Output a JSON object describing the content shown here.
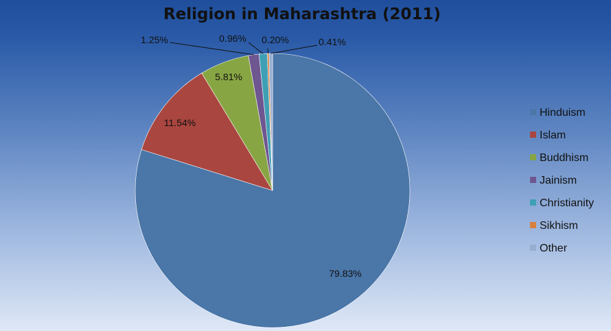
{
  "chart_data": {
    "type": "pie",
    "title": "Religion in Maharashtra (2011)",
    "legend_position": "right",
    "slices": [
      {
        "name": "Hinduism",
        "value": 79.83,
        "label": "79.83%",
        "color": "#4a76a8"
      },
      {
        "name": "Islam",
        "value": 11.54,
        "label": "11.54%",
        "color": "#a9463f"
      },
      {
        "name": "Buddhism",
        "value": 5.81,
        "label": "5.81%",
        "color": "#88a544"
      },
      {
        "name": "Jainism",
        "value": 1.25,
        "label": "1.25%",
        "color": "#6e5690"
      },
      {
        "name": "Christianity",
        "value": 0.96,
        "label": "0.96%",
        "color": "#3f9fb5"
      },
      {
        "name": "Sikhism",
        "value": 0.2,
        "label": "0.20%",
        "color": "#d9803d"
      },
      {
        "name": "Other",
        "value": 0.41,
        "label": "0.41%",
        "color": "#97aed1"
      }
    ]
  }
}
